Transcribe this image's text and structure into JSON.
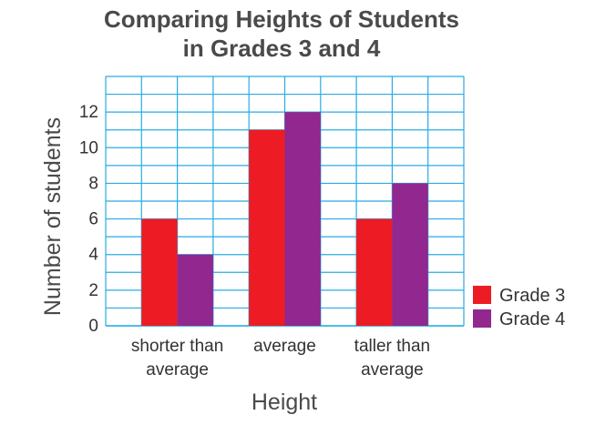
{
  "chart_data": {
    "type": "bar",
    "title": [
      "Comparing Heights of Students",
      "in Grades 3 and 4"
    ],
    "xlabel": "Height",
    "ylabel": "Number of students",
    "categories": [
      [
        "shorter than",
        "average"
      ],
      [
        "average"
      ],
      [
        "taller than",
        "average"
      ]
    ],
    "series": [
      {
        "name": "Grade 3",
        "values": [
          6,
          11,
          6
        ],
        "color": "#ed1c24"
      },
      {
        "name": "Grade 4",
        "values": [
          4,
          12,
          8
        ],
        "color": "#92278f"
      }
    ],
    "ylim": [
      0,
      14
    ],
    "yticks": [
      0,
      2,
      4,
      6,
      8,
      10,
      12
    ],
    "grid": true,
    "grid_color": "#29abe2",
    "legend_position": "right"
  }
}
